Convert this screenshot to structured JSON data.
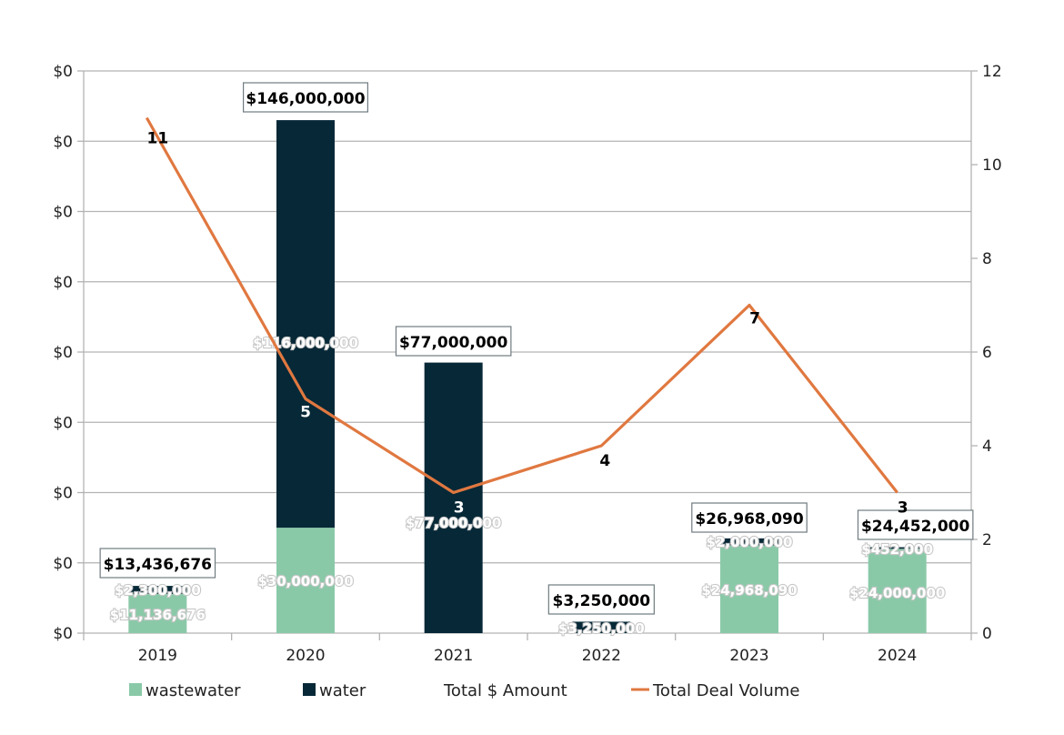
{
  "chart_data": {
    "type": "bar",
    "stacked": true,
    "categories": [
      "2019",
      "2020",
      "2021",
      "2022",
      "2023",
      "2024"
    ],
    "series": [
      {
        "name": "wastewater",
        "color": "#8ac9a8",
        "values": [
          11136676,
          30000000,
          0,
          0,
          24968090,
          24000000
        ],
        "labels": [
          "$11,136,676",
          "$30,000,000",
          null,
          null,
          "$24,968,090",
          "$24,000,000"
        ]
      },
      {
        "name": "water",
        "color": "#062837",
        "values": [
          2300000,
          116000000,
          77000000,
          3250000,
          2000000,
          452000
        ],
        "labels": [
          "$2,300,000",
          "$116,000,000",
          "$77,000,000",
          "$3,250,000",
          "$2,000,000",
          "$452,000"
        ]
      }
    ],
    "totals": {
      "name": "Total $ Amount",
      "values": [
        13436676,
        146000000,
        77000000,
        3250000,
        26968090,
        24452000
      ],
      "labels": [
        "$13,436,676",
        "$146,000,000",
        "$77,000,000",
        "$3,250,000",
        "$26,968,090",
        "$24,452,000"
      ]
    },
    "line": {
      "name": "Total Deal Volume",
      "color": "#e07840",
      "values": [
        11,
        5,
        3,
        4,
        7,
        3
      ],
      "labels": [
        "11",
        "5",
        "3",
        "4",
        "7",
        "3"
      ],
      "label_colors": [
        "#000000",
        "#ffffff",
        "#ffffff",
        "#000000",
        "#000000",
        "#000000"
      ]
    },
    "y_left": {
      "tick_labels": [
        "$0",
        "$0",
        "$0",
        "$0",
        "$0",
        "$0",
        "$0",
        "$0",
        "$0"
      ],
      "ylim": [
        0,
        160000000
      ]
    },
    "y_right": {
      "tick_labels": [
        "0",
        "2",
        "4",
        "6",
        "8",
        "10",
        "12"
      ],
      "ylim": [
        0,
        12
      ]
    },
    "legend": {
      "placement": "bottom",
      "items": [
        {
          "label": "wastewater",
          "swatch": "square",
          "color": "#8ac9a8"
        },
        {
          "label": "water",
          "swatch": "square",
          "color": "#062837"
        },
        {
          "label": "Total $ Amount",
          "swatch": "none",
          "color": "#ffffff"
        },
        {
          "label": "Total Deal Volume",
          "swatch": "line",
          "color": "#e07840"
        }
      ]
    },
    "grid": true
  }
}
